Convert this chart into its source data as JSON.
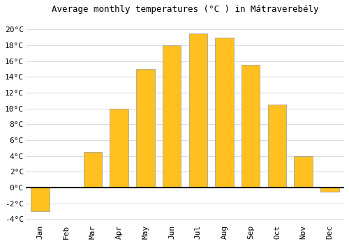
{
  "months": [
    "Jan",
    "Feb",
    "Mar",
    "Apr",
    "May",
    "Jun",
    "Jul",
    "Aug",
    "Sep",
    "Oct",
    "Nov",
    "Dec"
  ],
  "values": [
    -3.0,
    0.0,
    4.5,
    10.0,
    15.0,
    18.0,
    19.5,
    19.0,
    15.5,
    10.5,
    4.0,
    -0.5
  ],
  "bar_color": "#FFC020",
  "bar_edge_color": "#999999",
  "title": "Average monthly temperatures (°C ) in Mátraverebély",
  "ylim": [
    -4.5,
    21.5
  ],
  "yticks": [
    -4,
    -2,
    0,
    2,
    4,
    6,
    8,
    10,
    12,
    14,
    16,
    18,
    20
  ],
  "background_color": "#ffffff",
  "grid_color": "#dddddd",
  "zero_line_color": "#000000",
  "title_fontsize": 9,
  "tick_fontsize": 8
}
